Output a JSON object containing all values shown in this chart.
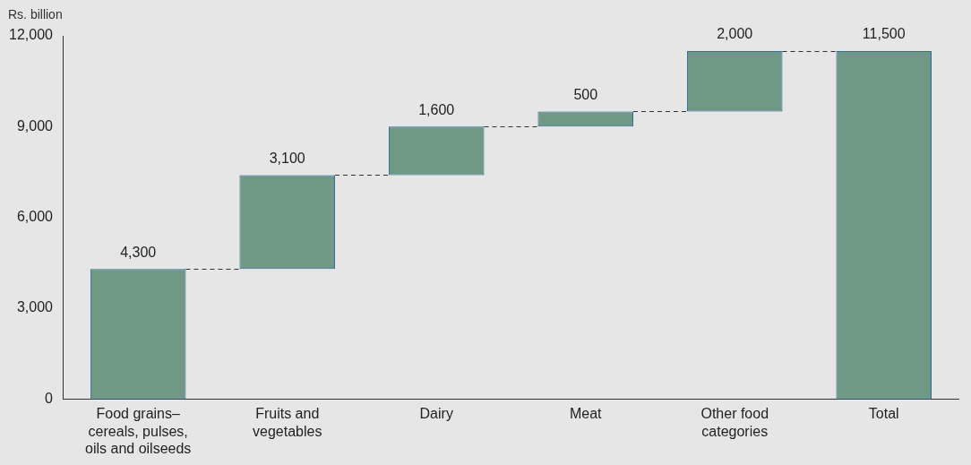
{
  "chart_data": {
    "type": "bar",
    "ylabel": "Rs. billion",
    "categories": [
      "Food grains–cereals, pulses, oils and oilseeds",
      "Fruits and vegetables",
      "Dairy",
      "Meat",
      "Other food categories",
      "Total"
    ],
    "values": [
      4300,
      3100,
      1600,
      500,
      2000,
      11500
    ],
    "base": [
      0,
      4300,
      7400,
      9000,
      9500,
      0
    ],
    "value_labels": [
      "4,300",
      "3,100",
      "1,600",
      "500",
      "2,000",
      "11,500"
    ],
    "color": "#6f9985",
    "ylim": [
      0,
      12000
    ],
    "yticks": [
      {
        "value": 0,
        "label": "0"
      },
      {
        "value": 3000,
        "label": "3,000"
      },
      {
        "value": 6000,
        "label": "6,000"
      },
      {
        "value": 9000,
        "label": "9,000"
      },
      {
        "value": 12000,
        "label": "12,000"
      }
    ],
    "grid": false,
    "legend": false
  }
}
